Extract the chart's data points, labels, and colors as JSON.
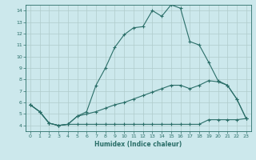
{
  "title": "",
  "xlabel": "Humidex (Indice chaleur)",
  "xlim": [
    -0.5,
    23.5
  ],
  "ylim": [
    3.5,
    14.5
  ],
  "yticks": [
    4,
    5,
    6,
    7,
    8,
    9,
    10,
    11,
    12,
    13,
    14
  ],
  "xticks": [
    0,
    1,
    2,
    3,
    4,
    5,
    6,
    7,
    8,
    9,
    10,
    11,
    12,
    13,
    14,
    15,
    16,
    17,
    18,
    19,
    20,
    21,
    22,
    23
  ],
  "background_color": "#cce8ec",
  "line_color": "#2a6e68",
  "grid_color": "#b0cccc",
  "lines": [
    {
      "x": [
        0,
        1,
        2,
        3,
        4,
        5,
        6,
        7,
        8,
        9,
        10,
        11,
        12,
        13,
        14,
        15,
        16,
        17,
        18,
        19,
        20,
        21,
        22,
        23
      ],
      "y": [
        5.8,
        5.2,
        4.2,
        4.0,
        4.1,
        4.8,
        5.2,
        7.5,
        9.0,
        10.8,
        11.9,
        12.5,
        12.6,
        14.0,
        13.5,
        14.5,
        14.2,
        11.3,
        11.0,
        9.5,
        7.9,
        7.5,
        6.3,
        4.6
      ]
    },
    {
      "x": [
        0,
        1,
        2,
        3,
        4,
        5,
        6,
        7,
        8,
        9,
        10,
        11,
        12,
        13,
        14,
        15,
        16,
        17,
        18,
        19,
        20,
        21,
        22,
        23
      ],
      "y": [
        5.8,
        5.2,
        4.2,
        4.0,
        4.1,
        4.8,
        5.0,
        5.2,
        5.5,
        5.8,
        6.0,
        6.3,
        6.6,
        6.9,
        7.2,
        7.5,
        7.5,
        7.2,
        7.5,
        7.9,
        7.8,
        7.5,
        6.3,
        4.6
      ]
    },
    {
      "x": [
        0,
        1,
        2,
        3,
        4,
        5,
        6,
        7,
        8,
        9,
        10,
        11,
        12,
        13,
        14,
        15,
        16,
        17,
        18,
        19,
        20,
        21,
        22,
        23
      ],
      "y": [
        5.8,
        5.2,
        4.2,
        4.0,
        4.1,
        4.1,
        4.1,
        4.1,
        4.1,
        4.1,
        4.1,
        4.1,
        4.1,
        4.1,
        4.1,
        4.1,
        4.1,
        4.1,
        4.1,
        4.5,
        4.5,
        4.5,
        4.5,
        4.6
      ]
    }
  ]
}
